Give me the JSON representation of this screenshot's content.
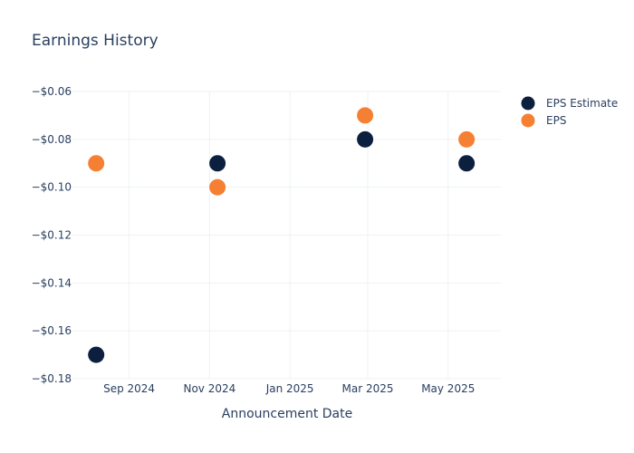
{
  "chart_data": {
    "type": "scatter",
    "title": "Earnings History",
    "xlabel": "Announcement Date",
    "ylabel": "",
    "x_ticks": [
      "2024-09-01",
      "2024-11-01",
      "2025-01-01",
      "2025-03-01",
      "2025-05-01"
    ],
    "x_tick_labels": [
      "Sep 2024",
      "Nov 2024",
      "Jan 2025",
      "Mar 2025",
      "May 2025"
    ],
    "xlim": [
      "2024-07-20",
      "2025-06-10"
    ],
    "y_ticks": [
      -0.06,
      -0.08,
      -0.1,
      -0.12,
      -0.14,
      -0.16,
      -0.18
    ],
    "y_tick_labels": [
      "−$0.06",
      "−$0.08",
      "−$0.10",
      "−$0.12",
      "−$0.14",
      "−$0.16",
      "−$0.18"
    ],
    "ylim": [
      -0.18,
      -0.06
    ],
    "grid": true,
    "legend_position": "top-right",
    "series": [
      {
        "name": "EPS Estimate",
        "color": "#0c1f3f",
        "x": [
          "2024-08-07",
          "2024-11-07",
          "2025-02-27",
          "2025-05-15"
        ],
        "y": [
          -0.17,
          -0.09,
          -0.08,
          -0.09
        ]
      },
      {
        "name": "EPS",
        "color": "#f57f33",
        "x": [
          "2024-08-07",
          "2024-11-07",
          "2025-02-27",
          "2025-05-15"
        ],
        "y": [
          -0.09,
          -0.1,
          -0.07,
          -0.08
        ]
      }
    ]
  }
}
